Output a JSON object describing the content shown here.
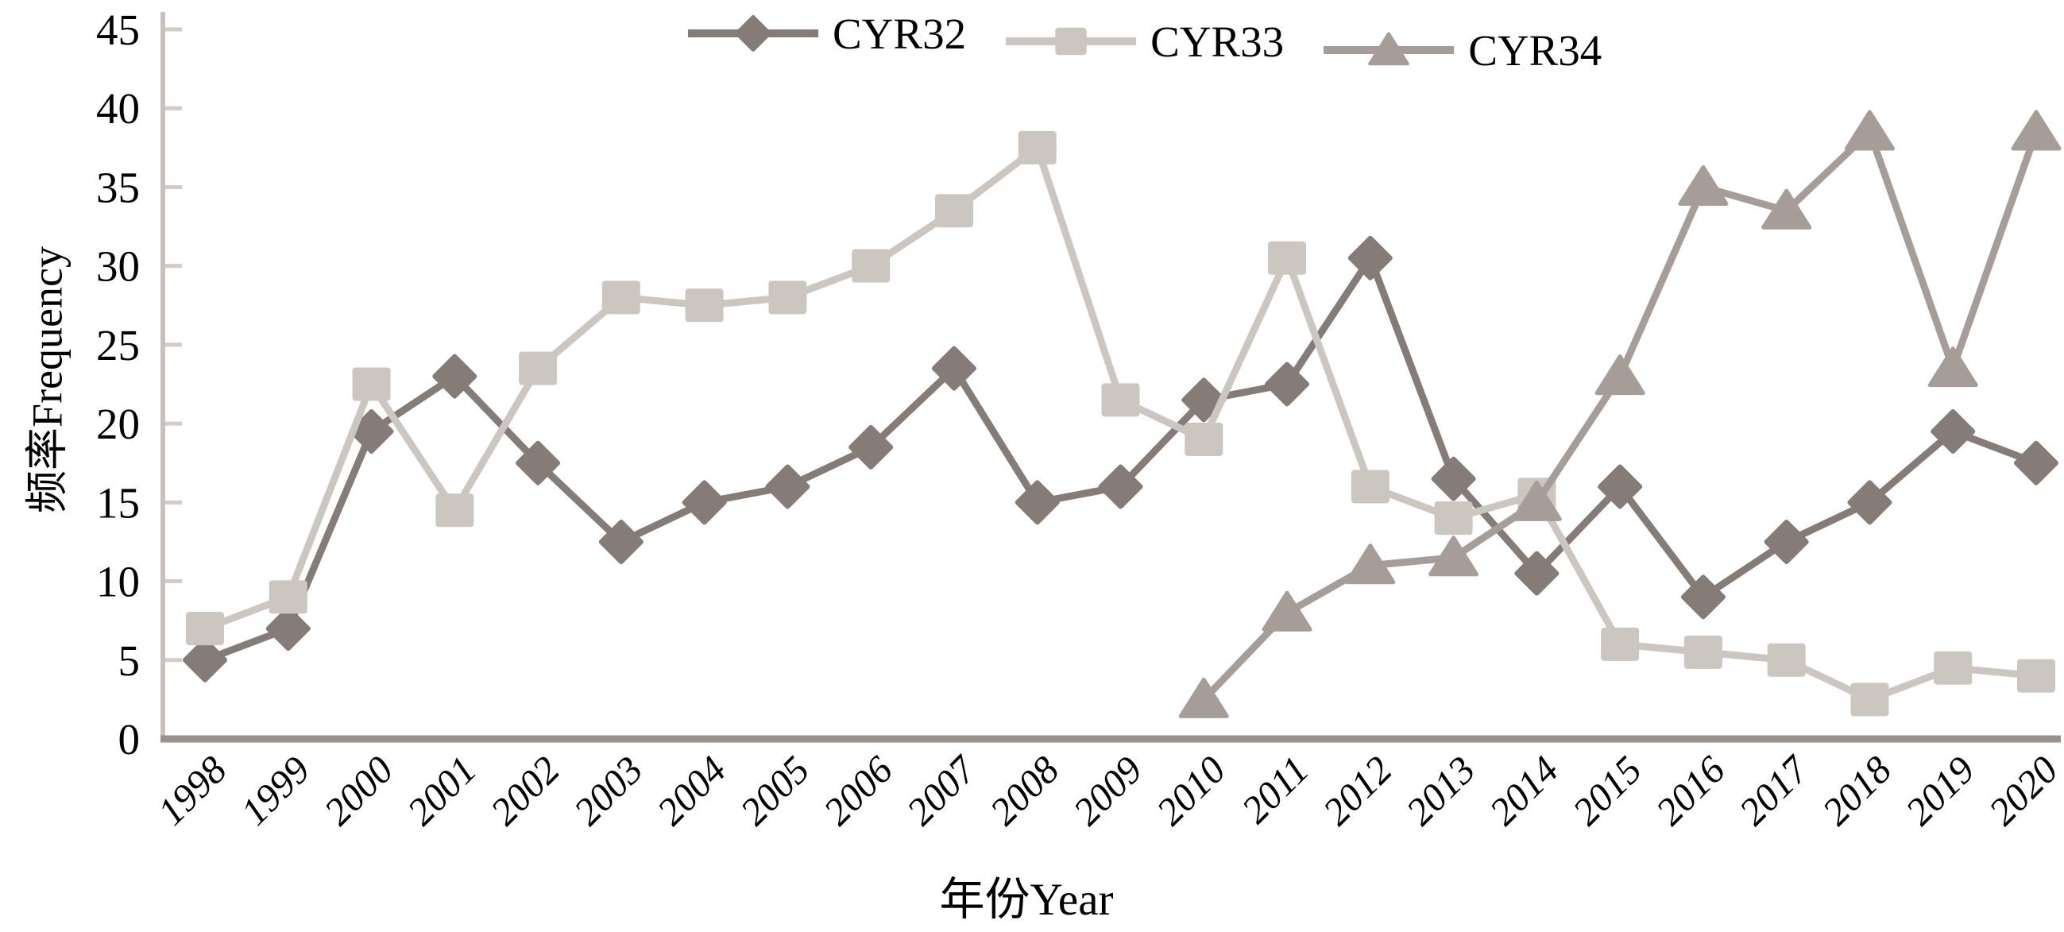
{
  "chart_data": {
    "type": "line",
    "title": "",
    "xlabel": "年份Year",
    "ylabel": "频率Frequency",
    "x": [
      1998,
      1999,
      2000,
      2001,
      2002,
      2003,
      2004,
      2005,
      2006,
      2007,
      2008,
      2009,
      2010,
      2011,
      2012,
      2013,
      2014,
      2015,
      2016,
      2017,
      2018,
      2019,
      2020
    ],
    "ylim": [
      0,
      45
    ],
    "ytick_step": 5,
    "grid": false,
    "legend_position": "top-center",
    "series": [
      {
        "name": "CYR32",
        "marker": "diamond",
        "color": "#857b77",
        "values": [
          5,
          7,
          19.5,
          23,
          17.5,
          12.5,
          15,
          16,
          18.5,
          23.5,
          15,
          16,
          21.5,
          22.5,
          30.5,
          16.5,
          10.5,
          16,
          9,
          12.5,
          15,
          19.5,
          17.5
        ]
      },
      {
        "name": "CYR33",
        "marker": "square",
        "color": "#ccc6c1",
        "values": [
          7,
          9,
          22.5,
          14.5,
          23.5,
          28,
          27.5,
          28,
          30,
          33.5,
          37.5,
          21.5,
          19,
          30.5,
          16,
          14,
          15.5,
          6,
          5.5,
          5,
          2.5,
          4.5,
          4
        ]
      },
      {
        "name": "CYR34",
        "marker": "triangle",
        "color": "#a69d98",
        "values": [
          null,
          null,
          null,
          null,
          null,
          null,
          null,
          null,
          null,
          null,
          null,
          null,
          2.5,
          8,
          11,
          11.5,
          15,
          23,
          35,
          33.5,
          38.5,
          23.5,
          38.5
        ]
      }
    ],
    "palette": {
      "x_axis_line": "#9a918a",
      "y_axis_line": "#c8c1bc",
      "tick_mark": "#d2cbc6",
      "text": "#000000",
      "background": "#ffffff"
    }
  }
}
